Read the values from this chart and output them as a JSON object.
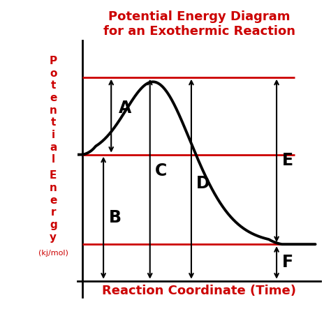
{
  "title_line1": "Potential Energy Diagram",
  "title_line2": "for an Exothermic Reaction",
  "xlabel": "Reaction Coordinate (Time)",
  "title_color": "#cc0000",
  "label_color": "#cc0000",
  "curve_color": "#000000",
  "arrow_color": "#000000",
  "hline_color": "#cc0000",
  "background_color": "#ffffff",
  "E_react": 0.62,
  "E_peak": 1.0,
  "E_prod": 0.18,
  "E_zero": 0.0,
  "label_A": "A",
  "label_B": "B",
  "label_C": "C",
  "label_D": "D",
  "label_E": "E",
  "label_F": "F",
  "figsize": [
    4.74,
    4.43
  ],
  "dpi": 100
}
